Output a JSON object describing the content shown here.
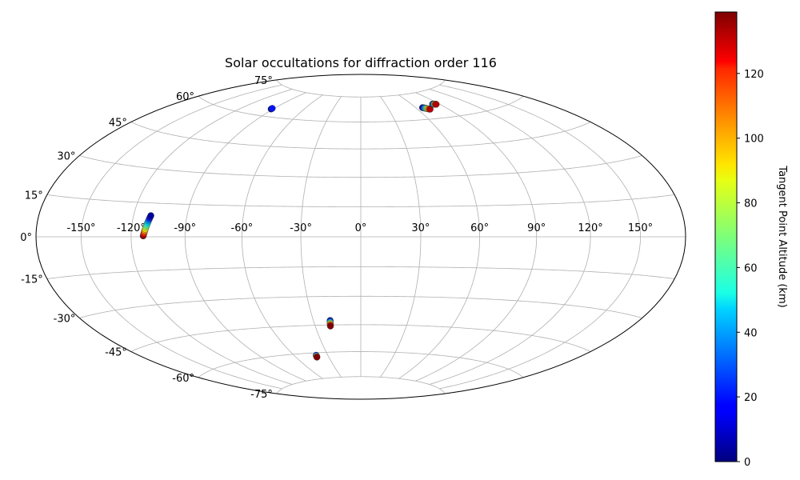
{
  "chart_data": {
    "type": "scatter",
    "projection": "hammer",
    "title": "Solar occultations for diffraction order 116",
    "xlabel": "",
    "ylabel": "",
    "grid": true,
    "lon_ticks": [
      -150,
      -120,
      -90,
      -60,
      -30,
      0,
      30,
      60,
      90,
      120,
      150
    ],
    "lat_ticks": [
      -75,
      -60,
      -45,
      -30,
      -15,
      0,
      15,
      30,
      45,
      60,
      75
    ],
    "colorbar": {
      "label": "Tangent Point Altitude (km)",
      "range": [
        0,
        139
      ],
      "ticks": [
        0,
        20,
        40,
        60,
        80,
        100,
        120
      ],
      "colormap": "jet"
    },
    "series": [
      {
        "x": [
          -92,
          -92
        ],
        "y": [
          64.0,
          64.4
        ],
        "c": [
          2,
          20
        ]
      },
      {
        "x": [
          -113.1,
          -112.9,
          -112.7,
          -112.5,
          -112.3,
          -112.1,
          -111.9,
          -111.7,
          -111.5,
          -111.3,
          -111.1,
          -110.9,
          -110.7,
          -110.5,
          -110.3,
          -110.1
        ],
        "y": [
          0.4,
          1.0,
          1.6,
          2.2,
          2.8,
          3.4,
          4.0,
          4.6,
          5.2,
          5.8,
          6.4,
          7.0,
          7.6,
          8.2,
          8.8,
          9.4
        ],
        "c": [
          139,
          130,
          120,
          110,
          100,
          90,
          80,
          72,
          64,
          56,
          48,
          40,
          32,
          22,
          12,
          4
        ]
      },
      {
        "x": [
          -19.4,
          -19.5,
          -19.6,
          -19.7,
          -19.8,
          -19.9,
          -20.0
        ],
        "y": [
          -42.6,
          -43.1,
          -43.6,
          -44.1,
          -44.6,
          -45.1,
          -45.6
        ],
        "c": [
          4,
          25,
          45,
          70,
          95,
          120,
          139
        ]
      },
      {
        "x": [
          -40.4,
          -40.6,
          -40.8,
          -41.0
        ],
        "y": [
          -61.4,
          -61.8,
          -62.2,
          -62.5
        ],
        "c": [
          15,
          60,
          110,
          139
        ]
      },
      {
        "x": [
          67.0,
          67.6,
          68.2,
          68.8,
          69.4,
          70.0,
          70.6,
          71.2,
          71.8,
          72.4
        ],
        "y": [
          66.6,
          66.5,
          66.3,
          66.2,
          66.0,
          65.9,
          65.7,
          65.6,
          65.4,
          65.3
        ],
        "c": [
          2,
          12,
          25,
          38,
          52,
          66,
          82,
          98,
          115,
          132
        ]
      },
      {
        "x": [
          83.0,
          83.4,
          83.8,
          84.2,
          84.6,
          85.0,
          85.4,
          85.8,
          86.2
        ],
        "y": [
          67.8,
          67.8,
          67.7,
          67.7,
          67.6,
          67.6,
          67.5,
          67.5,
          67.4
        ],
        "c": [
          2,
          14,
          30,
          48,
          66,
          84,
          100,
          116,
          132
        ]
      }
    ]
  }
}
